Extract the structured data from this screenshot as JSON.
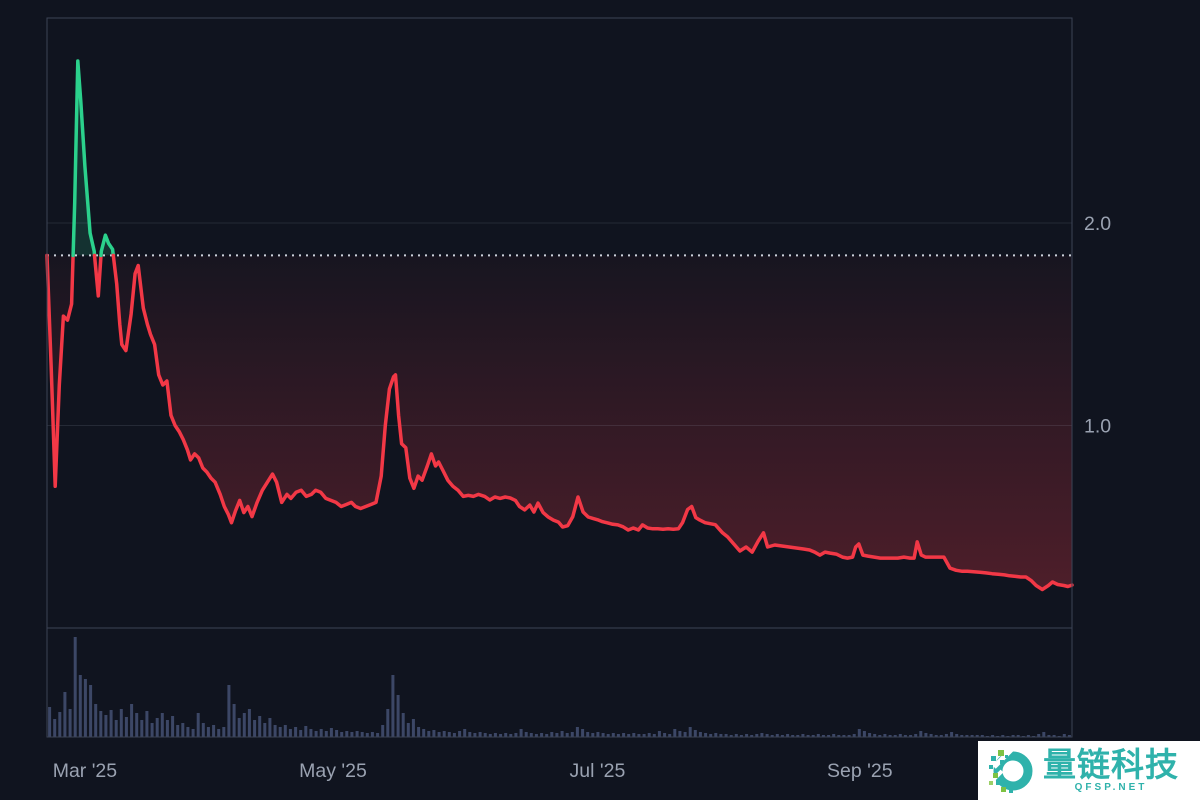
{
  "watermark": {
    "brand": "量链科技",
    "site": "QFSP.NET",
    "teal": "#2fb2ab",
    "lime": "#7dc243",
    "bg": "#ffffff"
  },
  "chart_data": {
    "type": "line",
    "subtype": "baseline-area-chart-with-volume-pane",
    "title": "",
    "xlabel": "",
    "ylabel": "",
    "grid": "horizontal-only",
    "legend": "none",
    "x_axis": {
      "kind": "time",
      "ticks": [
        {
          "label": "Mar '25",
          "f": 0.037
        },
        {
          "label": "May '25",
          "f": 0.279
        },
        {
          "label": "Jul '25",
          "f": 0.537
        },
        {
          "label": "Sep '25",
          "f": 0.793
        }
      ]
    },
    "y_axis": {
      "side": "right",
      "range": [
        0,
        3.0
      ],
      "ticks": [
        {
          "label": "2.0",
          "value": 2.0
        },
        {
          "label": "1.0",
          "value": 1.0
        }
      ]
    },
    "baseline_value": 1.84,
    "baseline_style": "dotted",
    "colors": {
      "up_line": "#2bd18c",
      "down_line": "#f23846",
      "up_fill": "rgba(43,209,140,0.16)",
      "down_fill_top": "rgba(242,56,70,0.03)",
      "down_fill_bottom": "rgba(242,56,70,0.30)",
      "volume_bar": "#3c4766",
      "gridline": "rgba(168,178,200,0.14)",
      "border": "#3c4356",
      "baseline_dots": "#cdd2dc",
      "tick_text": "#9aa2b1",
      "background": "#10141f"
    },
    "price_points": [
      [
        0.0,
        1.84
      ],
      [
        0.004,
        1.3
      ],
      [
        0.008,
        0.7
      ],
      [
        0.012,
        1.2
      ],
      [
        0.016,
        1.54
      ],
      [
        0.02,
        1.52
      ],
      [
        0.024,
        1.6
      ],
      [
        0.027,
        2.1
      ],
      [
        0.03,
        2.8
      ],
      [
        0.033,
        2.6
      ],
      [
        0.037,
        2.28
      ],
      [
        0.042,
        1.95
      ],
      [
        0.046,
        1.86
      ],
      [
        0.05,
        1.64
      ],
      [
        0.053,
        1.86
      ],
      [
        0.057,
        1.94
      ],
      [
        0.06,
        1.9
      ],
      [
        0.064,
        1.87
      ],
      [
        0.068,
        1.7
      ],
      [
        0.071,
        1.5
      ],
      [
        0.073,
        1.4
      ],
      [
        0.077,
        1.37
      ],
      [
        0.082,
        1.55
      ],
      [
        0.086,
        1.75
      ],
      [
        0.089,
        1.79
      ],
      [
        0.094,
        1.58
      ],
      [
        0.098,
        1.5
      ],
      [
        0.101,
        1.45
      ],
      [
        0.105,
        1.4
      ],
      [
        0.109,
        1.25
      ],
      [
        0.113,
        1.2
      ],
      [
        0.117,
        1.22
      ],
      [
        0.121,
        1.05
      ],
      [
        0.125,
        1.0
      ],
      [
        0.129,
        0.97
      ],
      [
        0.133,
        0.93
      ],
      [
        0.137,
        0.88
      ],
      [
        0.14,
        0.83
      ],
      [
        0.144,
        0.86
      ],
      [
        0.148,
        0.84
      ],
      [
        0.152,
        0.79
      ],
      [
        0.156,
        0.77
      ],
      [
        0.16,
        0.74
      ],
      [
        0.164,
        0.72
      ],
      [
        0.169,
        0.66
      ],
      [
        0.173,
        0.6
      ],
      [
        0.177,
        0.56
      ],
      [
        0.18,
        0.52
      ],
      [
        0.184,
        0.58
      ],
      [
        0.188,
        0.63
      ],
      [
        0.192,
        0.57
      ],
      [
        0.196,
        0.6
      ],
      [
        0.2,
        0.55
      ],
      [
        0.205,
        0.62
      ],
      [
        0.21,
        0.68
      ],
      [
        0.215,
        0.72
      ],
      [
        0.22,
        0.76
      ],
      [
        0.224,
        0.72
      ],
      [
        0.229,
        0.62
      ],
      [
        0.234,
        0.66
      ],
      [
        0.238,
        0.64
      ],
      [
        0.243,
        0.67
      ],
      [
        0.248,
        0.68
      ],
      [
        0.253,
        0.65
      ],
      [
        0.258,
        0.66
      ],
      [
        0.262,
        0.68
      ],
      [
        0.267,
        0.67
      ],
      [
        0.272,
        0.64
      ],
      [
        0.277,
        0.63
      ],
      [
        0.282,
        0.62
      ],
      [
        0.287,
        0.6
      ],
      [
        0.292,
        0.61
      ],
      [
        0.297,
        0.62
      ],
      [
        0.301,
        0.6
      ],
      [
        0.306,
        0.59
      ],
      [
        0.311,
        0.6
      ],
      [
        0.316,
        0.61
      ],
      [
        0.321,
        0.62
      ],
      [
        0.326,
        0.75
      ],
      [
        0.33,
        1.0
      ],
      [
        0.334,
        1.18
      ],
      [
        0.338,
        1.24
      ],
      [
        0.34,
        1.25
      ],
      [
        0.343,
        1.05
      ],
      [
        0.346,
        0.91
      ],
      [
        0.35,
        0.89
      ],
      [
        0.354,
        0.74
      ],
      [
        0.358,
        0.69
      ],
      [
        0.362,
        0.75
      ],
      [
        0.366,
        0.73
      ],
      [
        0.371,
        0.8
      ],
      [
        0.375,
        0.86
      ],
      [
        0.379,
        0.8
      ],
      [
        0.382,
        0.82
      ],
      [
        0.386,
        0.78
      ],
      [
        0.391,
        0.73
      ],
      [
        0.396,
        0.7
      ],
      [
        0.401,
        0.68
      ],
      [
        0.406,
        0.65
      ],
      [
        0.411,
        0.655
      ],
      [
        0.416,
        0.65
      ],
      [
        0.421,
        0.66
      ],
      [
        0.427,
        0.65
      ],
      [
        0.432,
        0.632
      ],
      [
        0.437,
        0.647
      ],
      [
        0.442,
        0.64
      ],
      [
        0.447,
        0.647
      ],
      [
        0.452,
        0.642
      ],
      [
        0.457,
        0.63
      ],
      [
        0.461,
        0.6
      ],
      [
        0.466,
        0.583
      ],
      [
        0.471,
        0.607
      ],
      [
        0.475,
        0.573
      ],
      [
        0.479,
        0.617
      ],
      [
        0.484,
        0.57
      ],
      [
        0.489,
        0.548
      ],
      [
        0.494,
        0.533
      ],
      [
        0.499,
        0.523
      ],
      [
        0.503,
        0.499
      ],
      [
        0.508,
        0.505
      ],
      [
        0.513,
        0.55
      ],
      [
        0.518,
        0.647
      ],
      [
        0.523,
        0.573
      ],
      [
        0.528,
        0.548
      ],
      [
        0.533,
        0.54
      ],
      [
        0.538,
        0.533
      ],
      [
        0.542,
        0.525
      ],
      [
        0.547,
        0.519
      ],
      [
        0.552,
        0.512
      ],
      [
        0.557,
        0.509
      ],
      [
        0.562,
        0.5
      ],
      [
        0.567,
        0.484
      ],
      [
        0.572,
        0.494
      ],
      [
        0.577,
        0.484
      ],
      [
        0.581,
        0.509
      ],
      [
        0.586,
        0.494
      ],
      [
        0.591,
        0.49
      ],
      [
        0.596,
        0.49
      ],
      [
        0.601,
        0.488
      ],
      [
        0.606,
        0.49
      ],
      [
        0.611,
        0.488
      ],
      [
        0.616,
        0.49
      ],
      [
        0.62,
        0.52
      ],
      [
        0.625,
        0.585
      ],
      [
        0.629,
        0.6
      ],
      [
        0.633,
        0.545
      ],
      [
        0.637,
        0.533
      ],
      [
        0.642,
        0.52
      ],
      [
        0.647,
        0.515
      ],
      [
        0.652,
        0.51
      ],
      [
        0.659,
        0.47
      ],
      [
        0.664,
        0.45
      ],
      [
        0.67,
        0.415
      ],
      [
        0.676,
        0.38
      ],
      [
        0.682,
        0.4
      ],
      [
        0.688,
        0.375
      ],
      [
        0.694,
        0.43
      ],
      [
        0.699,
        0.47
      ],
      [
        0.703,
        0.4
      ],
      [
        0.71,
        0.41
      ],
      [
        0.717,
        0.405
      ],
      [
        0.724,
        0.4
      ],
      [
        0.731,
        0.395
      ],
      [
        0.738,
        0.39
      ],
      [
        0.744,
        0.385
      ],
      [
        0.749,
        0.375
      ],
      [
        0.754,
        0.36
      ],
      [
        0.759,
        0.375
      ],
      [
        0.764,
        0.37
      ],
      [
        0.77,
        0.365
      ],
      [
        0.776,
        0.35
      ],
      [
        0.781,
        0.345
      ],
      [
        0.786,
        0.35
      ],
      [
        0.789,
        0.4
      ],
      [
        0.792,
        0.415
      ],
      [
        0.796,
        0.36
      ],
      [
        0.801,
        0.355
      ],
      [
        0.807,
        0.35
      ],
      [
        0.813,
        0.345
      ],
      [
        0.818,
        0.345
      ],
      [
        0.824,
        0.345
      ],
      [
        0.83,
        0.345
      ],
      [
        0.836,
        0.35
      ],
      [
        0.842,
        0.345
      ],
      [
        0.846,
        0.345
      ],
      [
        0.849,
        0.425
      ],
      [
        0.853,
        0.36
      ],
      [
        0.857,
        0.35
      ],
      [
        0.863,
        0.35
      ],
      [
        0.869,
        0.35
      ],
      [
        0.875,
        0.35
      ],
      [
        0.881,
        0.296
      ],
      [
        0.887,
        0.285
      ],
      [
        0.893,
        0.28
      ],
      [
        0.898,
        0.28
      ],
      [
        0.904,
        0.278
      ],
      [
        0.91,
        0.275
      ],
      [
        0.916,
        0.272
      ],
      [
        0.922,
        0.268
      ],
      [
        0.928,
        0.265
      ],
      [
        0.934,
        0.262
      ],
      [
        0.939,
        0.258
      ],
      [
        0.945,
        0.255
      ],
      [
        0.95,
        0.252
      ],
      [
        0.955,
        0.252
      ],
      [
        0.96,
        0.235
      ],
      [
        0.965,
        0.21
      ],
      [
        0.971,
        0.19
      ],
      [
        0.977,
        0.21
      ],
      [
        0.981,
        0.227
      ],
      [
        0.986,
        0.215
      ],
      [
        0.992,
        0.21
      ],
      [
        0.996,
        0.205
      ],
      [
        1.0,
        0.212
      ]
    ],
    "volume": [
      30,
      18,
      25,
      45,
      28,
      100,
      62,
      58,
      52,
      33,
      26,
      22,
      27,
      17,
      28,
      20,
      33,
      24,
      17,
      26,
      14,
      19,
      24,
      17,
      21,
      12,
      14,
      10,
      8,
      24,
      14,
      10,
      12,
      8,
      10,
      52,
      33,
      19,
      24,
      28,
      17,
      21,
      14,
      19,
      12,
      10,
      12,
      8,
      10,
      7,
      11,
      8,
      6,
      8,
      6,
      9,
      7,
      5,
      6,
      5,
      6,
      5,
      4,
      5,
      4,
      12,
      28,
      62,
      42,
      24,
      14,
      18,
      10,
      8,
      6,
      7,
      5,
      6,
      5,
      4,
      6,
      8,
      5,
      4,
      5,
      4,
      3,
      4,
      3,
      4,
      3,
      4,
      8,
      5,
      4,
      3,
      4,
      3,
      5,
      4,
      6,
      4,
      5,
      10,
      8,
      5,
      4,
      5,
      4,
      3,
      4,
      3,
      4,
      3,
      4,
      3,
      3,
      4,
      3,
      6,
      4,
      3,
      8,
      6,
      5,
      10,
      7,
      5,
      4,
      3,
      4,
      3,
      3,
      2,
      3,
      2,
      3,
      2,
      3,
      4,
      3,
      2,
      3,
      2,
      3,
      2,
      2,
      3,
      2,
      2,
      3,
      2,
      2,
      3,
      2,
      2,
      2,
      3,
      8,
      6,
      4,
      3,
      2,
      3,
      2,
      2,
      3,
      2,
      2,
      3,
      6,
      4,
      3,
      2,
      2,
      3,
      5,
      3,
      2,
      2,
      2,
      2,
      2,
      1,
      2,
      1,
      2,
      1,
      2,
      2,
      1,
      2,
      1,
      3,
      5,
      2,
      2,
      1,
      3,
      2
    ]
  }
}
